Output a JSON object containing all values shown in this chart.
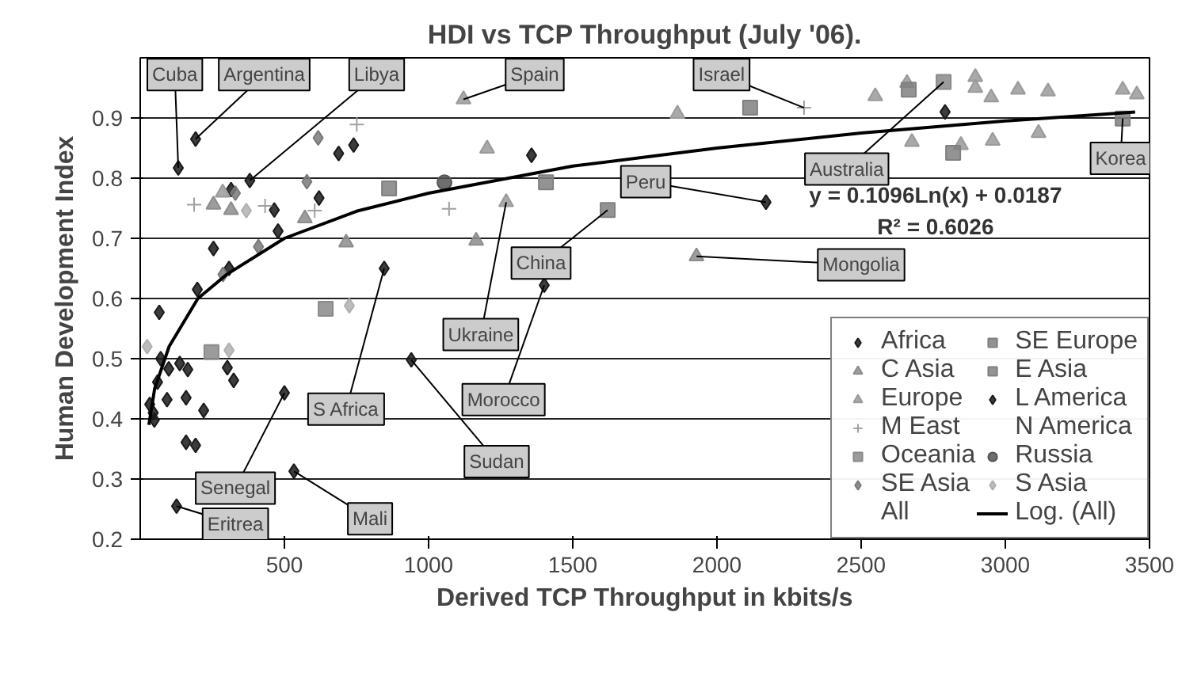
{
  "chart_data": {
    "type": "scatter",
    "title": "HDI vs TCP Throughput (July '06).",
    "xlabel": "Derived TCP Throughput in kbits/s",
    "ylabel": "Human Development Index",
    "xlim": [
      0,
      3500
    ],
    "ylim": [
      0.2,
      1.0
    ],
    "xticks": [
      500,
      1000,
      1500,
      2000,
      2500,
      3000,
      3500
    ],
    "yticks": [
      0.2,
      0.3,
      0.4,
      0.5,
      0.6,
      0.7,
      0.8,
      0.9
    ],
    "grid": "y",
    "legend": "bottom right",
    "series": [
      {
        "name": "Africa",
        "color": "#1a1a1a",
        "marker": "diamond",
        "x": [
          380,
          620,
          315,
          465,
          478,
          254,
          308,
          198,
          66,
          71,
          99,
          137,
          165,
          60,
          33,
          49,
          93,
          159,
          220,
          159,
          192,
          126,
          302,
          324,
          846,
          500,
          533,
          1401,
          940,
          45
        ],
        "values": [
          0.796,
          0.767,
          0.781,
          0.747,
          0.712,
          0.683,
          0.65,
          0.615,
          0.577,
          0.5,
          0.483,
          0.492,
          0.482,
          0.461,
          0.424,
          0.398,
          0.432,
          0.435,
          0.414,
          0.361,
          0.356,
          0.255,
          0.485,
          0.464,
          0.65,
          0.443,
          0.313,
          0.622,
          0.498,
          0.41
        ]
      },
      {
        "name": "C Asia",
        "color": "#8c8c8c",
        "marker": "triangle",
        "x": [
          254,
          315,
          714,
          571,
          1165,
          1929
        ],
        "values": [
          0.756,
          0.747,
          0.693,
          0.733,
          0.696,
          0.67
        ]
      },
      {
        "name": "Europe",
        "color": "#9a9a9a",
        "marker": "triangle",
        "x": [
          286,
          1121,
          1863,
          1203,
          1269,
          2549,
          2659,
          2896,
          2896,
          2951,
          3044,
          3148,
          3407,
          3456,
          2676,
          2846,
          2956,
          3115
        ],
        "values": [
          0.776,
          0.931,
          0.907,
          0.849,
          0.76,
          0.936,
          0.958,
          0.968,
          0.95,
          0.934,
          0.947,
          0.944,
          0.947,
          0.939,
          0.86,
          0.855,
          0.862,
          0.875
        ]
      },
      {
        "name": "M East",
        "color": "#a0a0a0",
        "marker": "cross",
        "x": [
          187,
          433,
          605,
          751,
          1071,
          2302
        ],
        "values": [
          0.756,
          0.754,
          0.746,
          0.889,
          0.749,
          0.917
        ]
      },
      {
        "name": "Oceania",
        "color": "#8a8a8a",
        "marker": "square",
        "x": [
          247,
          643,
          2786
        ],
        "values": [
          0.511,
          0.583,
          0.96
        ]
      },
      {
        "name": "SE Asia",
        "color": "#7a7a7a",
        "marker": "diamond",
        "x": [
          617,
          578,
          410,
          287,
          330
        ],
        "values": [
          0.867,
          0.794,
          0.686,
          0.64,
          0.775
        ]
      },
      {
        "name": "All"
      },
      {
        "name": "SE Europe",
        "color": "#808080",
        "marker": "square",
        "x": [
          863,
          1407,
          2115,
          2819
        ],
        "values": [
          0.783,
          0.793,
          0.917,
          0.842
        ]
      },
      {
        "name": "E Asia",
        "color": "#808080",
        "marker": "square",
        "x": [
          1621,
          2665,
          3407
        ],
        "values": [
          0.747,
          0.947,
          0.899
        ]
      },
      {
        "name": "L America",
        "color": "#1a1a1a",
        "marker": "diamond",
        "x": [
          132,
          192,
          688,
          740,
          1357,
          2170,
          2791
        ],
        "values": [
          0.817,
          0.865,
          0.841,
          0.855,
          0.838,
          0.76,
          0.91
        ]
      },
      {
        "name": "N America",
        "color": "#333333",
        "marker": "dash"
      },
      {
        "name": "Russia",
        "color": "#555555",
        "marker": "circle",
        "x": [
          1055
        ],
        "values": [
          0.793
        ]
      },
      {
        "name": "S Asia",
        "color": "#b0b0b0",
        "marker": "diamond",
        "x": [
          24,
          368,
          308,
          725
        ],
        "values": [
          0.52,
          0.746,
          0.514,
          0.588
        ]
      },
      {
        "name": "Log. (All)",
        "type": "line",
        "color": "#000000",
        "marker": "none",
        "x": [
          30,
          50,
          100,
          200,
          300,
          500,
          750,
          1000,
          1500,
          2000,
          2500,
          3000,
          3450
        ],
        "values": [
          0.39,
          0.45,
          0.52,
          0.6,
          0.64,
          0.7,
          0.745,
          0.775,
          0.82,
          0.85,
          0.875,
          0.895,
          0.91
        ]
      }
    ],
    "annotations": [
      {
        "text": "Cuba",
        "x": 132,
        "y": 0.817
      },
      {
        "text": "Argentina",
        "x": 192,
        "y": 0.865
      },
      {
        "text": "Libya",
        "x": 380,
        "y": 0.796
      },
      {
        "text": "Spain",
        "x": 1121,
        "y": 0.931
      },
      {
        "text": "Israel",
        "x": 2302,
        "y": 0.917
      },
      {
        "text": "Australia",
        "x": 2786,
        "y": 0.96
      },
      {
        "text": "Korea",
        "x": 3407,
        "y": 0.899
      },
      {
        "text": "Peru",
        "x": 2170,
        "y": 0.76
      },
      {
        "text": "China",
        "x": 1621,
        "y": 0.747
      },
      {
        "text": "Mongolia",
        "x": 1929,
        "y": 0.67
      },
      {
        "text": "Ukraine",
        "x": 1269,
        "y": 0.76
      },
      {
        "text": "Morocco",
        "x": 1401,
        "y": 0.622
      },
      {
        "text": "S Africa",
        "x": 846,
        "y": 0.65
      },
      {
        "text": "Sudan",
        "x": 940,
        "y": 0.498
      },
      {
        "text": "Mali",
        "x": 533,
        "y": 0.313
      },
      {
        "text": "Senegal",
        "x": 500,
        "y": 0.443
      },
      {
        "text": "Eritrea",
        "x": 126,
        "y": 0.255
      },
      "y = 0.1096Ln(x) + 0.0187",
      "R² = 0.6026"
    ]
  }
}
